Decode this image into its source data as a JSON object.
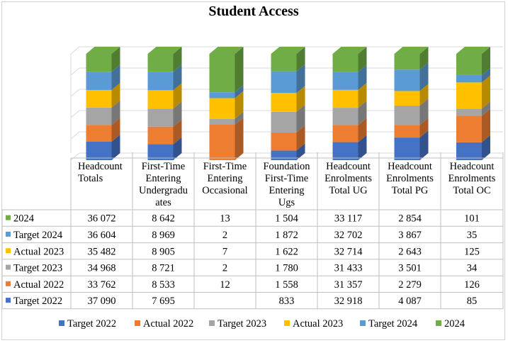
{
  "chart_data": {
    "type": "bar",
    "stacked": true,
    "three_d": true,
    "title": "Student Access",
    "legend_position": "bottom",
    "categories": [
      [
        "Headcount",
        "Totals"
      ],
      [
        "First-Time",
        "Entering",
        "Undergradu",
        "ates"
      ],
      [
        "First-Time",
        "Entering",
        "Occasional"
      ],
      [
        "Foundation",
        "First-Time",
        "Entering",
        "Ugs"
      ],
      [
        "Headcount",
        "Enrolments",
        "Total UG"
      ],
      [
        "Headcount",
        "Enrolments",
        "Total PG"
      ],
      [
        "Headcount",
        "Enrolments",
        "Total OC"
      ]
    ],
    "series": [
      {
        "name": "Target 2022",
        "color": "#4472C4",
        "values": [
          37090,
          7695,
          null,
          833,
          32918,
          4087,
          85
        ],
        "labels": [
          "37 090",
          "7 695",
          "",
          "833",
          "32 918",
          "4 087",
          "85"
        ]
      },
      {
        "name": "Actual 2022",
        "color": "#ED7D31",
        "values": [
          33762,
          8533,
          12,
          1558,
          31357,
          2279,
          126
        ],
        "labels": [
          "33 762",
          "8 533",
          "12",
          "1 558",
          "31 357",
          "2 279",
          "126"
        ]
      },
      {
        "name": "Target 2023",
        "color": "#A5A5A5",
        "values": [
          34968,
          8721,
          2,
          1780,
          31433,
          3501,
          34
        ],
        "labels": [
          "34 968",
          "8 721",
          "2",
          "1 780",
          "31 433",
          "3 501",
          "34"
        ]
      },
      {
        "name": "Actual 2023",
        "color": "#FFC000",
        "values": [
          35482,
          8905,
          7,
          1622,
          32714,
          2643,
          125
        ],
        "labels": [
          "35 482",
          "8 905",
          "7",
          "1 622",
          "32 714",
          "2 643",
          "125"
        ]
      },
      {
        "name": "Target 2024",
        "color": "#5B9BD5",
        "values": [
          36604,
          8969,
          2,
          1872,
          32702,
          3867,
          35
        ],
        "labels": [
          "36 604",
          "8 969",
          "2",
          "1 872",
          "32 702",
          "3 867",
          "35"
        ]
      },
      {
        "name": "2024",
        "color": "#70AD47",
        "values": [
          36072,
          8642,
          13,
          1504,
          33117,
          2854,
          101
        ],
        "labels": [
          "36 072",
          "8 642",
          "13",
          "1 504",
          "33 117",
          "2 854",
          "101"
        ]
      }
    ],
    "table_row_order": [
      "2024",
      "Target 2024",
      "Actual 2023",
      "Target 2023",
      "Actual 2022",
      "Target 2022"
    ],
    "ylim_percent": [
      0,
      100
    ],
    "grid": true
  }
}
